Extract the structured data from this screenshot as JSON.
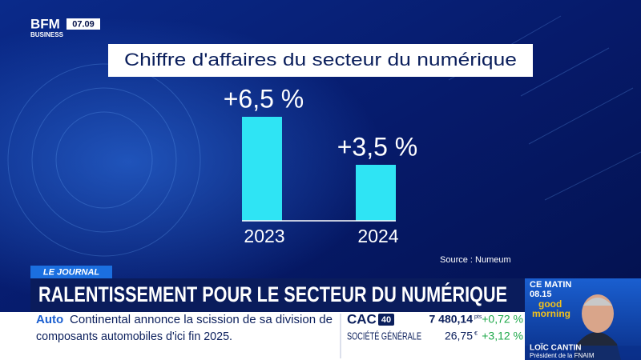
{
  "header": {
    "logo": "BFM",
    "logo_sub": "BUSINESS",
    "time": "07.09"
  },
  "chart_data": {
    "type": "bar",
    "title": "Chiffre d'affaires du secteur du numérique",
    "categories": [
      "2023",
      "2024"
    ],
    "values": [
      6.5,
      3.5
    ],
    "value_labels": [
      "+6,5 %",
      "+3,5 %"
    ],
    "color": "#2fe4f4",
    "source": "Source : Numeum"
  },
  "banner": {
    "tag": "LE JOURNAL",
    "headline": "RALENTISSEMENT POUR LE SECTEUR DU NUMÉRIQUE"
  },
  "ticker": {
    "category": "Auto",
    "lines": [
      "Continental annonce la scission de sa division de",
      "composants automobiles d'ici fin 2025."
    ]
  },
  "market": {
    "index": "CAC",
    "index_badge": "40",
    "index_value": "7 480,14",
    "index_unit": "pts",
    "index_change": "+0,72 %",
    "stock": "SOCIÉTÉ GÉNÉRALE",
    "stock_value": "26,75",
    "stock_unit": "€",
    "stock_change": "+3,12 %"
  },
  "show": {
    "label": "CE MATIN",
    "time": "08.15",
    "logo_top": "good",
    "logo_bottom": "morning",
    "guest_name": "LOÏC CANTIN",
    "guest_title": "Président de la FNAIM"
  }
}
